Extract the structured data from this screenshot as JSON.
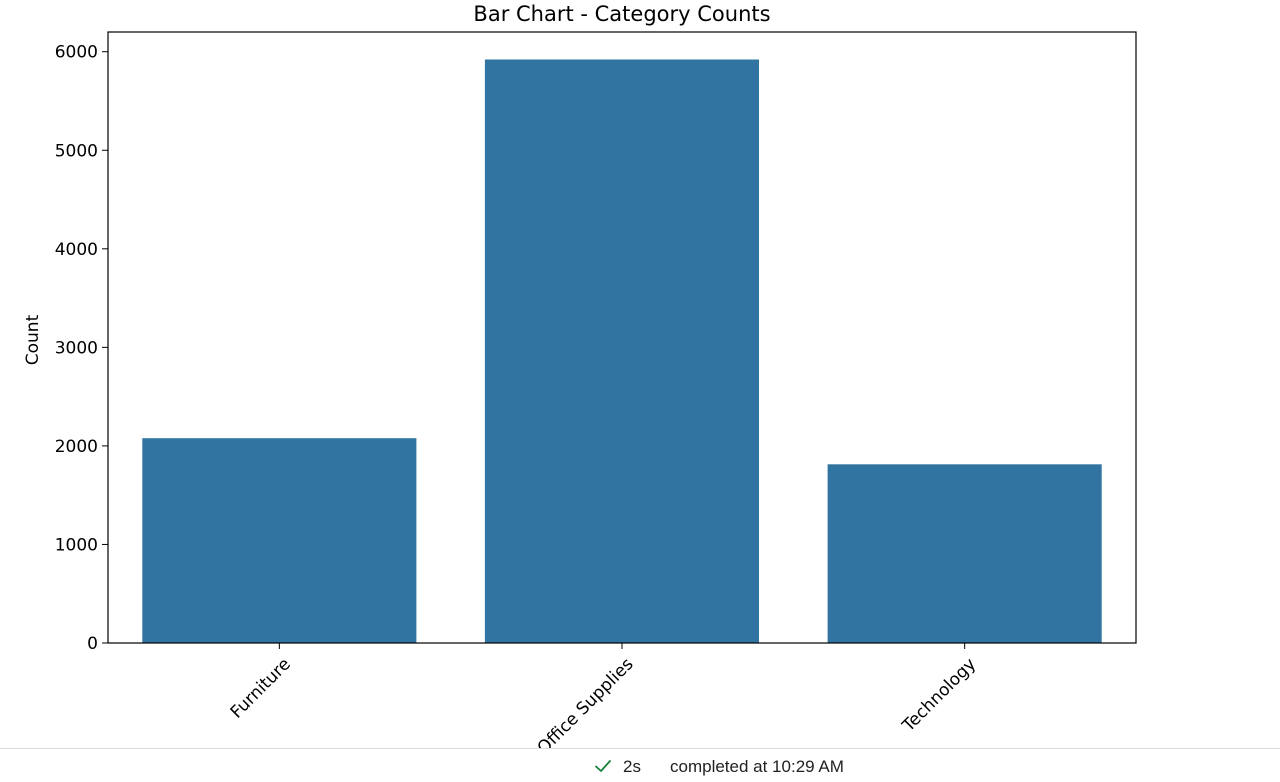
{
  "chart_data": {
    "type": "bar",
    "title": "Bar Chart - Category Counts",
    "xlabel": "",
    "ylabel": "Count",
    "categories": [
      "Furniture",
      "Office Supplies",
      "Technology"
    ],
    "values": [
      2078,
      5921,
      1813
    ],
    "ylim": [
      0,
      6200
    ],
    "yticks": [
      0,
      1000,
      2000,
      3000,
      4000,
      5000,
      6000
    ],
    "bar_color": "#3274a1",
    "grid": false
  },
  "status": {
    "duration": "2s",
    "text": "completed at 10:29 AM",
    "check_color": "#188038",
    "check_icon": "checkmark-icon"
  }
}
